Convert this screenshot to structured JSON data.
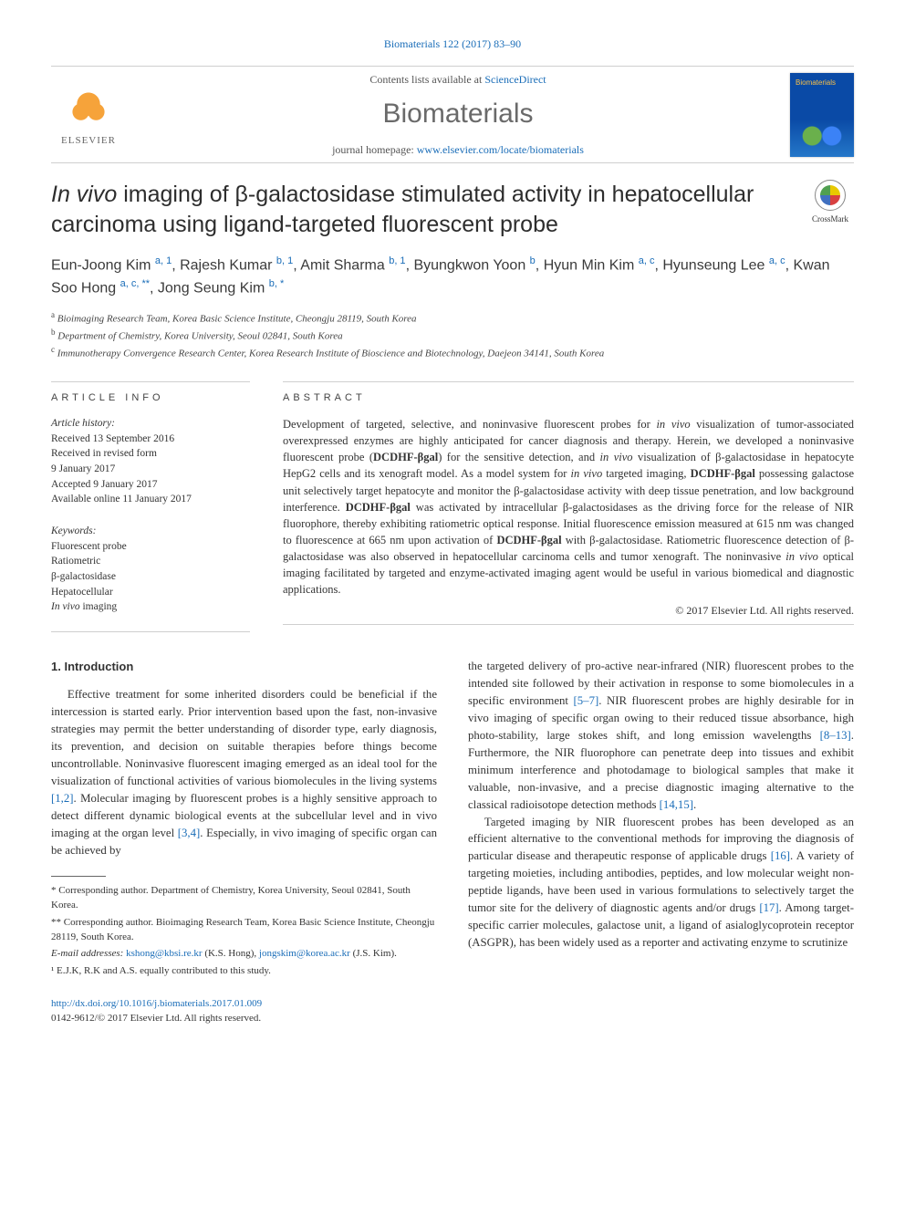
{
  "citation": "Biomaterials 122 (2017) 83–90",
  "header": {
    "contents_prefix": "Contents lists available at ",
    "contents_link": "ScienceDirect",
    "journal": "Biomaterials",
    "homepage_prefix": "journal homepage: ",
    "homepage_url": "www.elsevier.com/locate/biomaterials",
    "publisher": "ELSEVIER"
  },
  "title": "In vivo imaging of β-galactosidase stimulated activity in hepatocellular carcinoma using ligand-targeted fluorescent probe",
  "crossmark": "CrossMark",
  "authors_html": "Eun-Joong Kim <sup>a, 1</sup>, Rajesh Kumar <sup>b, 1</sup>, Amit Sharma <sup>b, 1</sup>, Byungkwon Yoon <sup>b</sup>, Hyun Min Kim <sup>a, c</sup>, Hyunseung Lee <sup>a, c</sup>, Kwan Soo Hong <sup>a, c, **</sup>, Jong Seung Kim <sup>b, *</sup>",
  "affiliations": [
    {
      "sup": "a",
      "text": "Bioimaging Research Team, Korea Basic Science Institute, Cheongju 28119, South Korea"
    },
    {
      "sup": "b",
      "text": "Department of Chemistry, Korea University, Seoul 02841, South Korea"
    },
    {
      "sup": "c",
      "text": "Immunotherapy Convergence Research Center, Korea Research Institute of Bioscience and Biotechnology, Daejeon 34141, South Korea"
    }
  ],
  "info": {
    "heading": "ARTICLE INFO",
    "history_label": "Article history:",
    "history": [
      "Received 13 September 2016",
      "Received in revised form",
      "9 January 2017",
      "Accepted 9 January 2017",
      "Available online 11 January 2017"
    ],
    "keywords_label": "Keywords:",
    "keywords": [
      "Fluorescent probe",
      "Ratiometric",
      "β-galactosidase",
      "Hepatocellular",
      "In vivo imaging"
    ]
  },
  "abstract": {
    "heading": "ABSTRACT",
    "text": "Development of targeted, selective, and noninvasive fluorescent probes for in vivo visualization of tumor-associated overexpressed enzymes are highly anticipated for cancer diagnosis and therapy. Herein, we developed a noninvasive fluorescent probe (DCDHF-βgal) for the sensitive detection, and in vivo visualization of β-galactosidase in hepatocyte HepG2 cells and its xenograft model. As a model system for in vivo targeted imaging, DCDHF-βgal possessing galactose unit selectively target hepatocyte and monitor the β-galactosidase activity with deep tissue penetration, and low background interference. DCDHF-βgal was activated by intracellular β-galactosidases as the driving force for the release of NIR fluorophore, thereby exhibiting ratiometric optical response. Initial fluorescence emission measured at 615 nm was changed to fluorescence at 665 nm upon activation of DCDHF-βgal with β-galactosidase. Ratiometric fluorescence detection of β-galactosidase was also observed in hepatocellular carcinoma cells and tumor xenograft. The noninvasive in vivo optical imaging facilitated by targeted and enzyme-activated imaging agent would be useful in various biomedical and diagnostic applications.",
    "copyright": "© 2017 Elsevier Ltd. All rights reserved."
  },
  "body": {
    "section_heading": "1. Introduction",
    "col1_p1": "Effective treatment for some inherited disorders could be beneficial if the intercession is started early. Prior intervention based upon the fast, non-invasive strategies may permit the better understanding of disorder type, early diagnosis, its prevention, and decision on suitable therapies before things become uncontrollable. Noninvasive fluorescent imaging emerged as an ideal tool for the visualization of functional activities of various biomolecules in the living systems ",
    "col1_ref1": "[1,2]",
    "col1_p1b": ". Molecular imaging by fluorescent probes is a highly sensitive approach to detect different dynamic biological events at the subcellular level and in vivo imaging at the organ level ",
    "col1_ref2": "[3,4]",
    "col1_p1c": ". Especially, in vivo imaging of specific organ can be achieved by",
    "col2_p1": "the targeted delivery of pro-active near-infrared (NIR) fluorescent probes to the intended site followed by their activation in response to some biomolecules in a specific environment ",
    "col2_ref1": "[5–7]",
    "col2_p1b": ". NIR fluorescent probes are highly desirable for in vivo imaging of specific organ owing to their reduced tissue absorbance, high photo-stability, large stokes shift, and long emission wavelengths ",
    "col2_ref2": "[8–13]",
    "col2_p1c": ". Furthermore, the NIR fluorophore can penetrate deep into tissues and exhibit minimum interference and photodamage to biological samples that make it valuable, non-invasive, and a precise diagnostic imaging alternative to the classical radioisotope detection methods ",
    "col2_ref3": "[14,15]",
    "col2_p1d": ".",
    "col2_p2": "Targeted imaging by NIR fluorescent probes has been developed as an efficient alternative to the conventional methods for improving the diagnosis of particular disease and therapeutic response of applicable drugs ",
    "col2_ref4": "[16]",
    "col2_p2b": ". A variety of targeting moieties, including antibodies, peptides, and low molecular weight non-peptide ligands, have been used in various formulations to selectively target the tumor site for the delivery of diagnostic agents and/or drugs ",
    "col2_ref5": "[17]",
    "col2_p2c": ". Among target-specific carrier molecules, galactose unit, a ligand of asialoglycoprotein receptor (ASGPR), has been widely used as a reporter and activating enzyme to scrutinize"
  },
  "footnotes": {
    "f1": "* Corresponding author. Department of Chemistry, Korea University, Seoul 02841, South Korea.",
    "f2": "** Corresponding author. Bioimaging Research Team, Korea Basic Science Institute, Cheongju 28119, South Korea.",
    "f3_prefix": "E-mail addresses: ",
    "f3_e1": "kshong@kbsi.re.kr",
    "f3_n1": " (K.S. Hong), ",
    "f3_e2": "jongskim@korea.ac.kr",
    "f3_n2": " (J.S. Kim).",
    "f4": "¹ E.J.K, R.K and A.S. equally contributed to this study."
  },
  "doi": {
    "url": "http://dx.doi.org/10.1016/j.biomaterials.2017.01.009",
    "issn_line": "0142-9612/© 2017 Elsevier Ltd. All rights reserved."
  }
}
